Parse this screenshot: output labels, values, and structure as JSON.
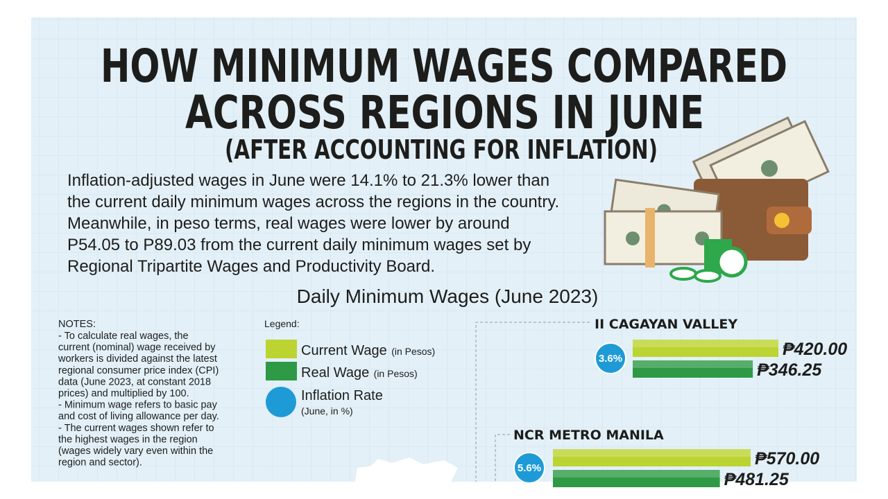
{
  "header": {
    "title_lines": [
      "HOW MINIMUM WAGES COMPARED",
      "ACROSS REGIONS IN JUNE"
    ],
    "subtitle": "(AFTER ACCOUNTING FOR INFLATION)"
  },
  "intro_lines": [
    "Inflation-adjusted wages in June were 14.1% to 21.3% lower than",
    "the current daily minimum wages across the regions in the country.",
    "Meanwhile, in peso terms, real wages were lower by around",
    "P54.05 to P89.03 from the current daily minimum wages set by",
    "Regional Tripartite Wages and Productivity Board."
  ],
  "section_title": "Daily Minimum Wages (June 2023)",
  "notes": {
    "title": "NOTES:",
    "lines": [
      "- To calculate real wages, the",
      "current (nominal) wage received by",
      "workers is divided against the latest",
      "regional consumer price index (CPI)",
      "data (June 2023, at constant 2018",
      "prices) and multiplied by 100.",
      "- Minimum wage refers to basic pay",
      "and cost of living allowance per day.",
      "- The current wages shown refer to",
      "the highest wages in the region",
      "(wages widely vary even within the",
      "region and sector)."
    ]
  },
  "legend": {
    "title": "Legend:",
    "items": [
      {
        "name": "Current Wage",
        "unit": "(in Pesos)",
        "color": "#bcd431"
      },
      {
        "name": "Real Wage",
        "unit": "(in Pesos)",
        "color": "#2e9a45"
      },
      {
        "name": "Inflation Rate",
        "unit": "(June, in %)",
        "color": "#1e9bd7"
      }
    ]
  },
  "chart_data": [
    {
      "type": "bar",
      "title": "II CAGAYAN VALLEY",
      "values": [
        420,
        346.25
      ],
      "value_labels": [
        "₱420.00",
        "₱346.25"
      ],
      "inflation": 3.6,
      "inflation_label": "3.6%"
    },
    {
      "type": "bar",
      "title": "NCR METRO MANILA",
      "values": [
        570,
        481.25
      ],
      "value_labels": [
        "₱570.00",
        "₱481.25"
      ],
      "inflation": 5.6,
      "inflation_label": "5.6%"
    }
  ]
}
